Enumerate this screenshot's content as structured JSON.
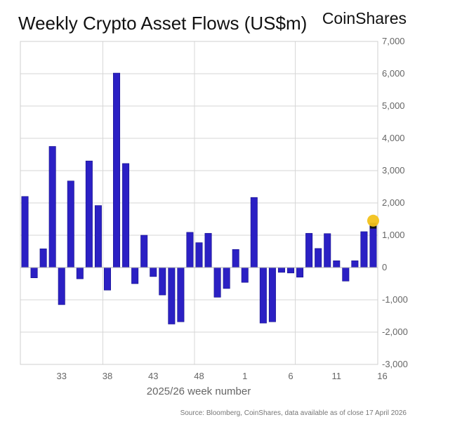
{
  "chart_data": {
    "type": "bar",
    "title": "Weekly Crypto Asset Flows (US$m)",
    "brand": "CoinShares",
    "xlabel": "2025/26 week number",
    "ylabel": "",
    "ylim": [
      -3000,
      7000
    ],
    "yticks": [
      7000,
      6000,
      5000,
      4000,
      3000,
      2000,
      1000,
      0,
      -1000,
      -2000,
      -3000
    ],
    "ytick_labels": [
      "7,000",
      "6,000",
      "5,000",
      "4,000",
      "3,000",
      "2,000",
      "1,000",
      "0",
      "-1,000",
      "-2,000",
      "-3,000"
    ],
    "x_start_week": 29,
    "xtick_labels": [
      "33",
      "38",
      "43",
      "48",
      "1",
      "6",
      "11",
      "16"
    ],
    "xtick_positions": [
      4,
      9,
      14,
      19,
      24,
      29,
      34,
      39
    ],
    "vertical_gridlines_after_bar_index": [
      8,
      18,
      29
    ],
    "grid": true,
    "series": [
      {
        "name": "Weekly flows",
        "color": "#2b20c4",
        "values": [
          2200,
          -320,
          580,
          3750,
          -1150,
          2680,
          -350,
          3300,
          1920,
          -700,
          6020,
          3220,
          -500,
          1000,
          -280,
          -850,
          -1750,
          -1680,
          1090,
          770,
          1060,
          -920,
          -650,
          560,
          -460,
          2170,
          -1720,
          -1680,
          -150,
          -170,
          -300,
          1060,
          590,
          1050,
          210,
          -420,
          210,
          1110,
          1380
        ]
      }
    ],
    "highlight": {
      "bar_index": 38,
      "marker_value": 1450,
      "marker_color": "#f2c21b",
      "bar_color": "#111111"
    },
    "source": "Source: Bloomberg, CoinShares, data available as of close 17 April 2026"
  }
}
